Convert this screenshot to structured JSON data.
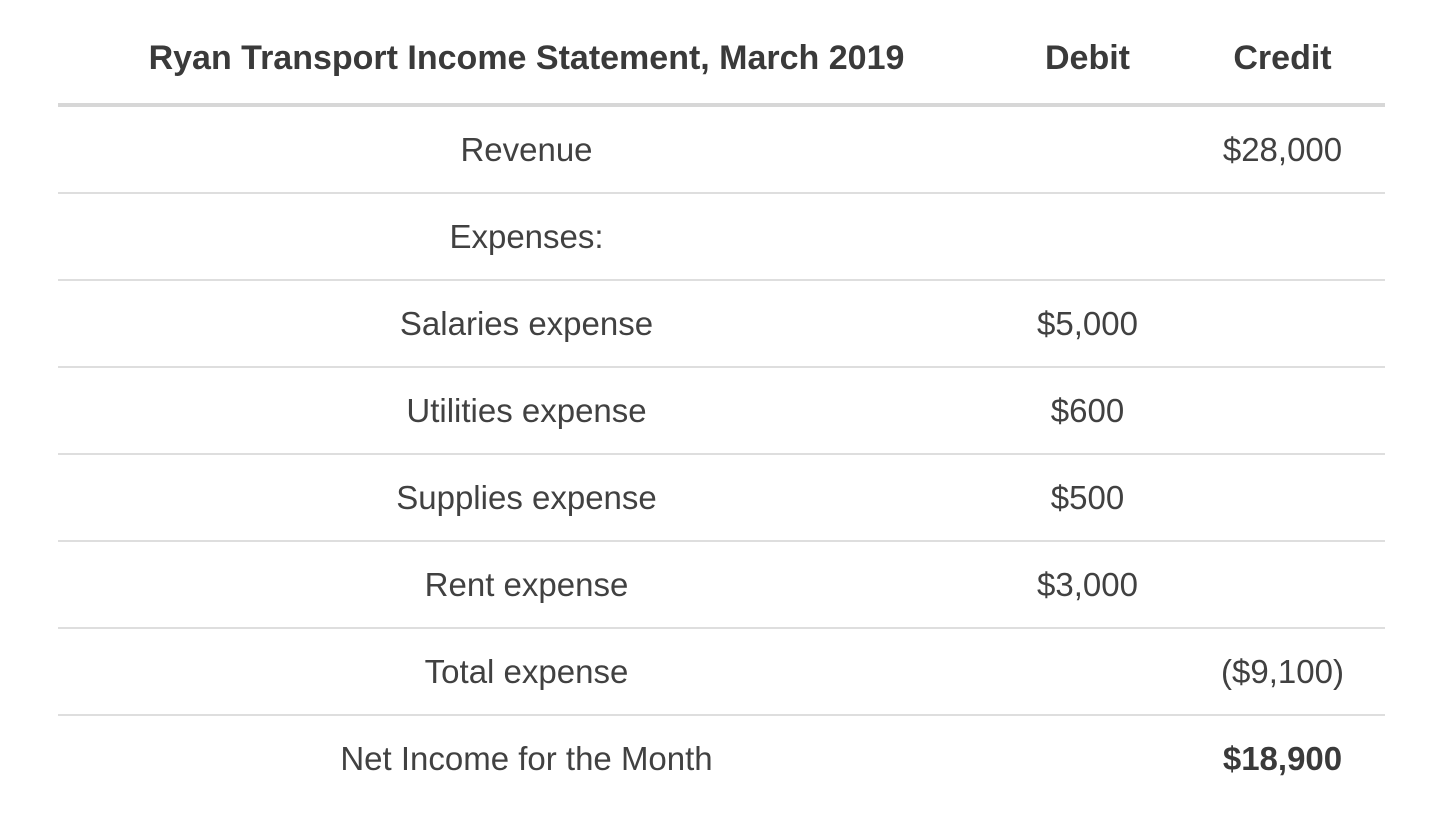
{
  "statement": {
    "title": "Ryan Transport Income Statement, March 2019",
    "columns": [
      "Debit",
      "Credit"
    ],
    "rows": [
      {
        "label": "Revenue",
        "debit": "",
        "credit": "$28,000"
      },
      {
        "label": "Expenses:",
        "debit": "",
        "credit": ""
      },
      {
        "label": "Salaries expense",
        "debit": "$5,000",
        "credit": ""
      },
      {
        "label": "Utilities expense",
        "debit": "$600",
        "credit": ""
      },
      {
        "label": "Supplies expense",
        "debit": "$500",
        "credit": ""
      },
      {
        "label": "Rent expense",
        "debit": "$3,000",
        "credit": ""
      },
      {
        "label": "Total expense",
        "debit": "",
        "credit": "($9,100)"
      },
      {
        "label": "Net Income for the Month",
        "debit": "",
        "credit": "$18,900"
      }
    ],
    "colors": {
      "body_text": "#414141",
      "heading_text": "#3a3a3a",
      "header_rule": "#d7d7d7",
      "row_rule": "#dedede",
      "background": "#ffffff"
    }
  }
}
